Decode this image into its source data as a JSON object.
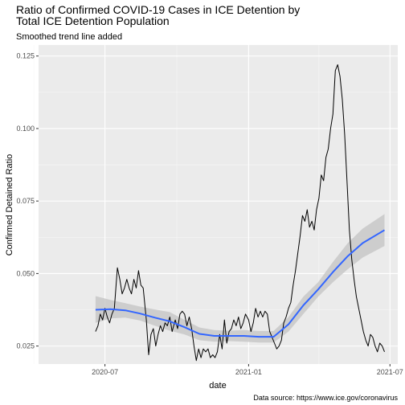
{
  "chart_data": {
    "type": "line",
    "title_line1": "Ratio of Confirmed COVID-19 Cases in ICE Detention by",
    "title_line2": "Total ICE Detention Population",
    "subtitle": "Smoothed trend line added",
    "xlabel": "date",
    "ylabel": "Confirmed Detained Ratio",
    "caption": "Data source: https://www.ice.gov/coronavirus",
    "grid": true,
    "panel_color": "#ebebeb",
    "line_color": "#000000",
    "smooth_color": "#3366ff",
    "ribbon_color": "#c8c8c8",
    "xlim": [
      "2020-04-07",
      "2021-07-11"
    ],
    "ylim": [
      0.0188,
      0.1288
    ],
    "x_ticks": [
      {
        "date": "2020-07-01",
        "label": "2020-07"
      },
      {
        "date": "2021-01-01",
        "label": "2021-01"
      },
      {
        "date": "2021-07-01",
        "label": "2021-07"
      }
    ],
    "x_minor_ticks": [
      "2020-04-01",
      "2020-10-01",
      "2021-04-01"
    ],
    "y_ticks": [
      {
        "value": 0.025,
        "label": "0.025"
      },
      {
        "value": 0.05,
        "label": "0.050"
      },
      {
        "value": 0.075,
        "label": "0.075"
      },
      {
        "value": 0.1,
        "label": "0.100"
      },
      {
        "value": 0.125,
        "label": "0.125"
      }
    ],
    "series": [
      {
        "x": [
          "2020-06-19",
          "2020-06-22",
          "2020-06-25",
          "2020-06-28",
          "2020-07-01",
          "2020-07-04",
          "2020-07-07",
          "2020-07-10",
          "2020-07-13",
          "2020-07-17",
          "2020-07-20",
          "2020-07-23",
          "2020-07-26",
          "2020-07-29",
          "2020-08-01",
          "2020-08-04",
          "2020-08-07",
          "2020-08-10",
          "2020-08-13",
          "2020-08-16",
          "2020-08-19",
          "2020-08-23",
          "2020-08-26",
          "2020-08-29",
          "2020-09-01",
          "2020-09-04",
          "2020-09-07",
          "2020-09-10",
          "2020-09-13",
          "2020-09-16",
          "2020-09-19",
          "2020-09-22",
          "2020-09-25",
          "2020-09-29",
          "2020-10-02",
          "2020-10-05",
          "2020-10-08",
          "2020-10-11",
          "2020-10-14",
          "2020-10-17",
          "2020-10-20",
          "2020-10-23",
          "2020-10-26",
          "2020-10-29",
          "2020-11-01",
          "2020-11-04",
          "2020-11-07",
          "2020-11-10",
          "2020-11-13",
          "2020-11-16",
          "2020-11-19",
          "2020-11-22",
          "2020-11-25",
          "2020-11-28",
          "2020-12-01",
          "2020-12-04",
          "2020-12-07",
          "2020-12-10",
          "2020-12-13",
          "2020-12-16",
          "2020-12-19",
          "2020-12-22",
          "2020-12-25",
          "2020-12-28",
          "2021-01-01",
          "2021-01-04",
          "2021-01-07",
          "2021-01-10",
          "2021-01-13",
          "2021-01-16",
          "2021-01-19",
          "2021-01-22",
          "2021-01-25",
          "2021-01-28",
          "2021-01-31",
          "2021-02-03",
          "2021-02-06",
          "2021-02-09",
          "2021-02-12",
          "2021-02-15",
          "2021-02-18",
          "2021-02-21",
          "2021-02-24",
          "2021-02-27",
          "2021-03-02",
          "2021-03-05",
          "2021-03-08",
          "2021-03-11",
          "2021-03-14",
          "2021-03-17",
          "2021-03-20",
          "2021-03-23",
          "2021-03-26",
          "2021-03-29",
          "2021-04-01",
          "2021-04-04",
          "2021-04-07",
          "2021-04-10",
          "2021-04-13",
          "2021-04-16",
          "2021-04-19",
          "2021-04-22",
          "2021-04-25",
          "2021-04-28",
          "2021-05-01",
          "2021-05-04",
          "2021-05-07",
          "2021-05-10",
          "2021-05-13",
          "2021-05-16",
          "2021-05-19",
          "2021-05-22",
          "2021-05-25",
          "2021-05-28",
          "2021-05-31",
          "2021-06-03",
          "2021-06-06",
          "2021-06-09",
          "2021-06-12",
          "2021-06-15",
          "2021-06-18",
          "2021-06-21",
          "2021-06-24"
        ],
        "values": [
          0.03,
          0.032,
          0.036,
          0.034,
          0.038,
          0.035,
          0.033,
          0.036,
          0.038,
          0.052,
          0.048,
          0.043,
          0.045,
          0.048,
          0.045,
          0.043,
          0.048,
          0.045,
          0.051,
          0.046,
          0.045,
          0.034,
          0.022,
          0.029,
          0.031,
          0.025,
          0.029,
          0.032,
          0.03,
          0.033,
          0.032,
          0.035,
          0.03,
          0.034,
          0.031,
          0.036,
          0.037,
          0.036,
          0.032,
          0.035,
          0.031,
          0.025,
          0.02,
          0.024,
          0.021,
          0.024,
          0.023,
          0.024,
          0.021,
          0.022,
          0.021,
          0.023,
          0.029,
          0.024,
          0.034,
          0.026,
          0.03,
          0.031,
          0.034,
          0.032,
          0.035,
          0.031,
          0.033,
          0.036,
          0.034,
          0.03,
          0.033,
          0.038,
          0.035,
          0.037,
          0.035,
          0.037,
          0.036,
          0.03,
          0.028,
          0.026,
          0.024,
          0.025,
          0.027,
          0.033,
          0.035,
          0.038,
          0.04,
          0.046,
          0.051,
          0.057,
          0.063,
          0.07,
          0.068,
          0.072,
          0.066,
          0.068,
          0.065,
          0.072,
          0.076,
          0.084,
          0.082,
          0.09,
          0.093,
          0.1,
          0.105,
          0.12,
          0.122,
          0.118,
          0.11,
          0.098,
          0.082,
          0.065,
          0.055,
          0.048,
          0.042,
          0.038,
          0.034,
          0.03,
          0.027,
          0.025,
          0.029,
          0.028,
          0.025,
          0.023,
          0.026,
          0.025,
          0.023
        ]
      }
    ],
    "smooth": {
      "x": [
        "2020-06-19",
        "2020-07-08",
        "2020-07-27",
        "2020-08-15",
        "2020-09-03",
        "2020-09-22",
        "2020-10-11",
        "2020-10-30",
        "2020-11-18",
        "2020-12-07",
        "2020-12-26",
        "2021-01-14",
        "2021-02-02",
        "2021-02-21",
        "2021-03-12",
        "2021-03-31",
        "2021-04-19",
        "2021-05-08",
        "2021-05-27",
        "2021-06-24"
      ],
      "y": [
        0.0375,
        0.0377,
        0.0373,
        0.0362,
        0.0348,
        0.0335,
        0.0315,
        0.0292,
        0.0285,
        0.0285,
        0.0285,
        0.0282,
        0.0282,
        0.0325,
        0.039,
        0.0445,
        0.0505,
        0.056,
        0.0605,
        0.065
      ],
      "lower": [
        0.033,
        0.0345,
        0.0348,
        0.0338,
        0.032,
        0.0303,
        0.029,
        0.027,
        0.0265,
        0.0267,
        0.0265,
        0.0262,
        0.0262,
        0.03,
        0.036,
        0.042,
        0.047,
        0.0515,
        0.0555,
        0.0595
      ],
      "upper": [
        0.0422,
        0.0409,
        0.0398,
        0.0386,
        0.0376,
        0.0367,
        0.034,
        0.0314,
        0.0305,
        0.0303,
        0.0305,
        0.0302,
        0.0302,
        0.035,
        0.042,
        0.047,
        0.054,
        0.0605,
        0.0655,
        0.0705
      ]
    }
  }
}
